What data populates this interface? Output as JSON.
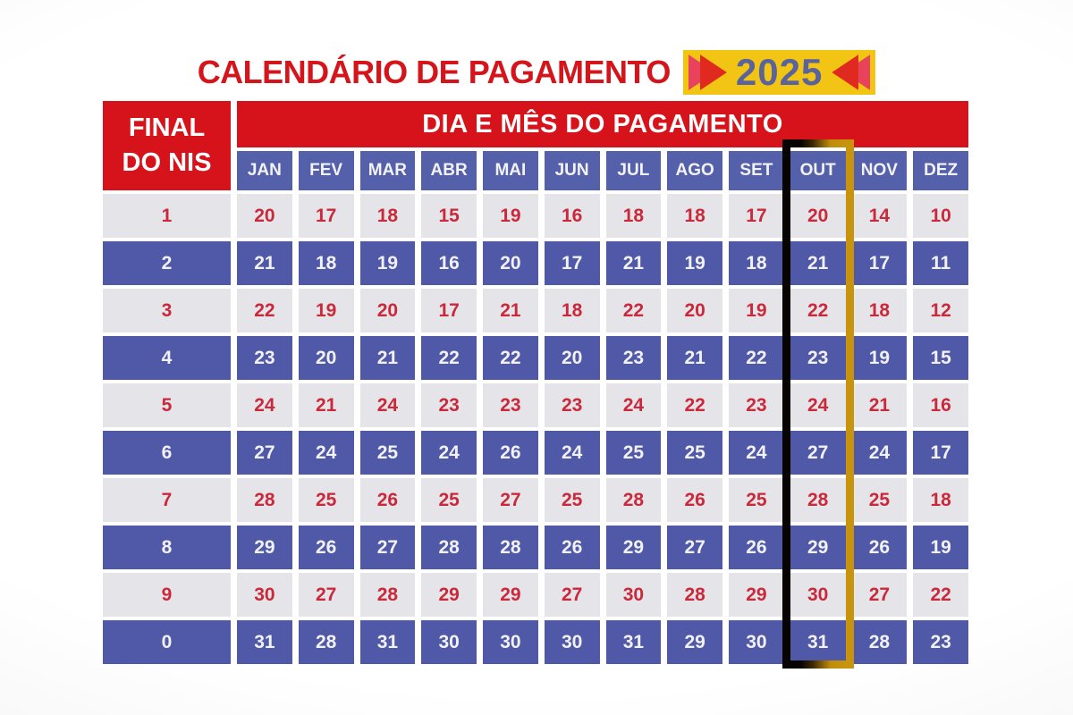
{
  "title": {
    "text": "CALENDÁRIO DE PAGAMENTO",
    "year": "2025"
  },
  "table": {
    "corner_header_line1": "FINAL",
    "corner_header_line2": "DO NIS",
    "main_header": "DIA E MÊS DO PAGAMENTO",
    "months": [
      "JAN",
      "FEV",
      "MAR",
      "ABR",
      "MAI",
      "JUN",
      "JUL",
      "AGO",
      "SET",
      "OUT",
      "NOV",
      "DEZ"
    ],
    "highlighted_month": "OUT"
  },
  "chart_data": {
    "type": "table",
    "title": "CALENDÁRIO DE PAGAMENTO 2025",
    "columns": [
      "FINAL DO NIS",
      "JAN",
      "FEV",
      "MAR",
      "ABR",
      "MAI",
      "JUN",
      "JUL",
      "AGO",
      "SET",
      "OUT",
      "NOV",
      "DEZ"
    ],
    "rows": [
      [
        "1",
        20,
        17,
        18,
        15,
        19,
        16,
        18,
        18,
        17,
        20,
        14,
        10
      ],
      [
        "2",
        21,
        18,
        19,
        16,
        20,
        17,
        21,
        19,
        18,
        21,
        17,
        11
      ],
      [
        "3",
        22,
        19,
        20,
        17,
        21,
        18,
        22,
        20,
        19,
        22,
        18,
        12
      ],
      [
        "4",
        23,
        20,
        21,
        22,
        22,
        20,
        23,
        21,
        22,
        23,
        19,
        15
      ],
      [
        "5",
        24,
        21,
        24,
        23,
        23,
        23,
        24,
        22,
        23,
        24,
        21,
        16
      ],
      [
        "6",
        27,
        24,
        25,
        24,
        26,
        24,
        25,
        25,
        24,
        27,
        24,
        17
      ],
      [
        "7",
        28,
        25,
        26,
        25,
        27,
        25,
        28,
        26,
        25,
        28,
        25,
        18
      ],
      [
        "8",
        29,
        26,
        27,
        28,
        28,
        26,
        29,
        27,
        26,
        29,
        26,
        19
      ],
      [
        "9",
        30,
        27,
        28,
        29,
        29,
        27,
        30,
        28,
        29,
        30,
        27,
        22
      ],
      [
        "0",
        31,
        28,
        31,
        30,
        30,
        30,
        31,
        29,
        30,
        31,
        28,
        23
      ]
    ],
    "highlighted_column": "OUT"
  },
  "colors": {
    "title_red": "#d4161c",
    "header_red": "#d6131b",
    "cell_blue_header": "#5560ab",
    "cell_blue": "#4f59a7",
    "cell_gray": "#e5e4e8",
    "number_red": "#c9293b",
    "badge_yellow": "#f2c413",
    "year_blue": "#5a639b",
    "triangle_pink": "#e8425c",
    "triangle_red": "#e02a1f",
    "highlight_black": "#060300",
    "highlight_gold": "#c8940e"
  }
}
